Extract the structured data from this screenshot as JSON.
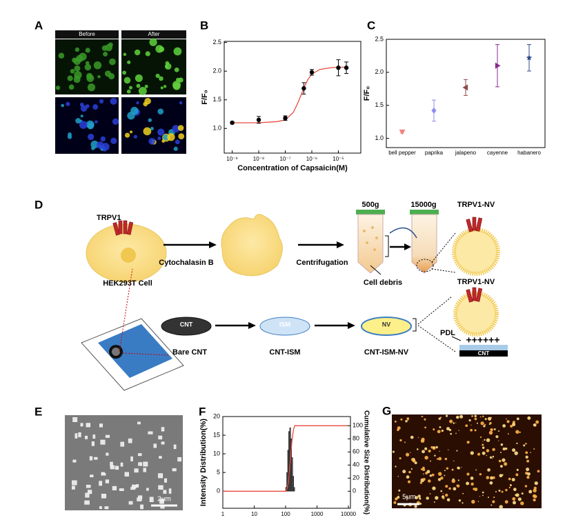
{
  "panels": {
    "A": {
      "label": "A",
      "before": "Before",
      "after": "After"
    },
    "D": {
      "label": "D",
      "trpv1": "TRPV1",
      "cell": "HEK293T Cell",
      "cytochalasin": "Cytochalasin B",
      "centrifugation": "Centrifugation",
      "g500": "500g",
      "g15000": "15000g",
      "debris": "Cell debris",
      "nv_top": "TRPV1-NV",
      "nv_bottom": "TRPV1-NV",
      "disc_cnt": "CNT",
      "disc_ism": "ISM",
      "disc_nv": "NV",
      "bare_cnt": "Bare CNT",
      "cnt_ism": "CNT-ISM",
      "cnt_ism_nv": "CNT-ISM-NV",
      "pdl": "PDL",
      "plus": "++++++",
      "cnt_layer": "CNT"
    },
    "E": {
      "label": "E",
      "scale": "2μm"
    },
    "G": {
      "label": "G",
      "scale": "5μm"
    }
  },
  "chart_data": [
    {
      "type": "scatter",
      "panel": "B",
      "x_label": "Concentration of Capsaicin(M)",
      "y_label": "F/F₀",
      "x": [
        1e-09,
        1e-08,
        1e-07,
        5e-07,
        1e-06,
        1e-05,
        2e-05
      ],
      "values": [
        1.1,
        1.15,
        1.18,
        1.7,
        1.98,
        2.06,
        2.06
      ],
      "errors": [
        0.02,
        0.06,
        0.04,
        0.1,
        0.05,
        0.14,
        0.1
      ],
      "color": "#000000",
      "fit": {
        "x": [
          1e-09,
          1e-08,
          5e-08,
          1e-07,
          2e-07,
          3e-07,
          5e-07,
          7e-07,
          1e-06,
          2e-06,
          5e-06,
          1e-05,
          2e-05
        ],
        "values": [
          1.1,
          1.1,
          1.12,
          1.15,
          1.28,
          1.45,
          1.7,
          1.85,
          1.95,
          2.03,
          2.06,
          2.07,
          2.07
        ],
        "color": "#e8493f"
      },
      "xlog": true,
      "xlim": [
        5e-10,
        7e-05
      ],
      "xticks": [
        {
          "value": 1e-09,
          "label": "10⁻⁹"
        },
        {
          "value": 1e-08,
          "label": "10⁻⁸"
        },
        {
          "value": 1e-07,
          "label": "10⁻⁷"
        },
        {
          "value": 1e-06,
          "label": "10⁻⁶"
        },
        {
          "value": 1e-05,
          "label": "10⁻⁵"
        }
      ],
      "ylim": [
        0.57,
        2.52
      ],
      "yticks": [
        {
          "value": 1,
          "label": "1.0"
        },
        1.5,
        {
          "value": 2,
          "label": "2.0"
        },
        2.5
      ]
    },
    {
      "type": "point",
      "panel": "C",
      "y_label": "F/F₀",
      "categories": [
        "bell pepper",
        "paprika",
        "jalapeno",
        "cayenne",
        "habanero"
      ],
      "values": [
        1.1,
        1.42,
        1.77,
        2.1,
        2.22
      ],
      "errors": [
        0.02,
        0.16,
        0.12,
        0.32,
        0.2
      ],
      "colors": [
        "#f08080",
        "#8c8cf0",
        "#8b4a4a",
        "#8b2a8b",
        "#2c4a8a"
      ],
      "markers": [
        "triangle-down",
        "diamond",
        "triangle-left",
        "triangle-right",
        "star"
      ],
      "ylim": [
        0.86,
        2.5
      ],
      "yticks": [
        {
          "value": 1,
          "label": "1.0"
        },
        1.5,
        {
          "value": 2,
          "label": "2.0"
        },
        2.5
      ]
    },
    {
      "type": "histogram",
      "panel": "F",
      "y_label": "Intensity Distribution(%)",
      "y2_label": "Cumulative Size Distribution(%)",
      "bins": [
        100,
        108,
        116,
        125,
        135,
        145,
        156,
        168,
        181,
        195
      ],
      "counts": [
        1,
        5,
        11,
        16,
        17,
        14,
        9,
        4,
        1
      ],
      "color": "#5a5a5a",
      "cumulative": {
        "x": [
          1,
          100,
          116,
          125,
          135,
          145,
          156,
          168,
          181,
          195,
          10000
        ],
        "values": [
          0,
          0,
          6,
          17,
          35,
          55,
          72,
          86,
          95,
          100,
          100
        ],
        "color": "#e8493f",
        "axis": "y2"
      },
      "xlog": true,
      "xlim": [
        1,
        10000
      ],
      "xticks": [
        1,
        10,
        100,
        1000,
        10000
      ],
      "ylim": [
        -4.6,
        20
      ],
      "yticks": [
        0,
        5,
        10,
        15,
        20
      ],
      "y2lim": [
        -26,
        114
      ],
      "y2ticks": [
        0,
        20,
        40,
        60,
        80,
        100
      ]
    }
  ]
}
